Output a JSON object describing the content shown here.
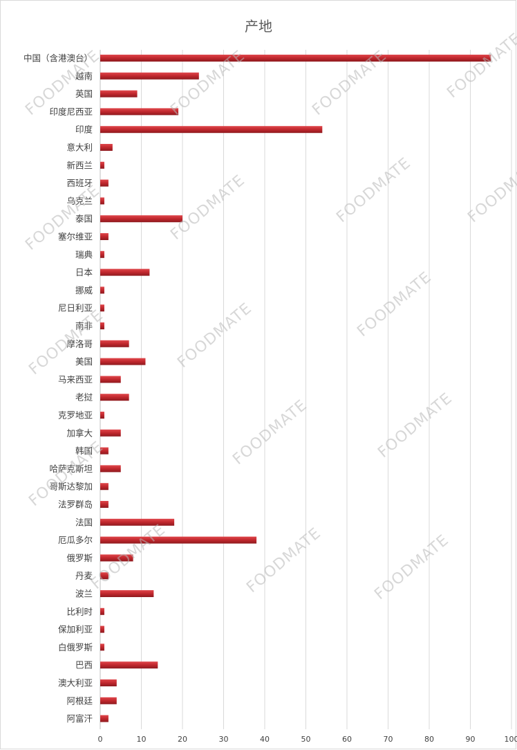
{
  "chart_data": {
    "type": "bar",
    "orientation": "horizontal",
    "title": "产地",
    "categories": [
      "中国（含港澳台）",
      "越南",
      "英国",
      "印度尼西亚",
      "印度",
      "意大利",
      "新西兰",
      "西班牙",
      "乌克兰",
      "泰国",
      "塞尔维亚",
      "瑞典",
      "日本",
      "挪威",
      "尼日利亚",
      "南非",
      "摩洛哥",
      "美国",
      "马来西亚",
      "老挝",
      "克罗地亚",
      "加拿大",
      "韩国",
      "哈萨克斯坦",
      "哥斯达黎加",
      "法罗群岛",
      "法国",
      "厄瓜多尔",
      "俄罗斯",
      "丹麦",
      "波兰",
      "比利时",
      "保加利亚",
      "白俄罗斯",
      "巴西",
      "澳大利亚",
      "阿根廷",
      "阿富汗"
    ],
    "values": [
      95,
      24,
      9,
      19,
      54,
      3,
      1,
      2,
      1,
      20,
      2,
      1,
      12,
      1,
      1,
      1,
      7,
      11,
      5,
      7,
      1,
      5,
      2,
      5,
      2,
      2,
      18,
      38,
      8,
      2,
      13,
      1,
      1,
      1,
      14,
      4,
      4,
      2
    ],
    "xlim": [
      0,
      100
    ],
    "xticks": [
      0,
      10,
      20,
      30,
      40,
      50,
      60,
      70,
      80,
      90,
      100
    ],
    "grid": "vertical",
    "bar_color": "#c0272d",
    "legend": "none"
  },
  "watermark": "FOODMATE"
}
